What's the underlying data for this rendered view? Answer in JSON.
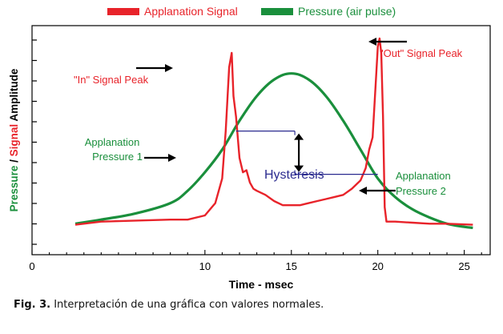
{
  "chart_data": {
    "type": "line",
    "legend_position": "top",
    "xlabel": "Time - msec",
    "ylabel_parts": [
      "Pressure",
      " / ",
      "Signal",
      " Amplitude"
    ],
    "xlim": [
      0,
      26.5
    ],
    "ylim": [
      0,
      1
    ],
    "x_ticks": [
      0,
      10,
      15,
      20,
      25
    ],
    "y_ticks_visible": false,
    "grid": false,
    "colors": {
      "signal": "#e8232a",
      "pressure": "#1a8f3c",
      "annotation": "#2b2b8f",
      "arrow": "#000000"
    },
    "series": [
      {
        "name": "Applanation Signal",
        "color": "#e8232a",
        "x": [
          2.5,
          4,
          6,
          8,
          9,
          10,
          10.6,
          11,
          11.2,
          11.4,
          11.55,
          11.65,
          11.8,
          12.0,
          12.2,
          12.4,
          12.6,
          12.8,
          13.0,
          13.5,
          14.0,
          14.5,
          15.0,
          15.5,
          16.0,
          16.5,
          17.0,
          17.5,
          18.0,
          18.5,
          19.0,
          19.3,
          19.5,
          19.7,
          19.9,
          20.0,
          20.1,
          20.2,
          20.3,
          20.4,
          20.5,
          21.0,
          22.0,
          23.0,
          24.0,
          25.5
        ],
        "y": [
          0.095,
          0.11,
          0.115,
          0.12,
          0.12,
          0.14,
          0.2,
          0.32,
          0.55,
          0.86,
          0.93,
          0.72,
          0.62,
          0.42,
          0.35,
          0.36,
          0.3,
          0.27,
          0.26,
          0.24,
          0.21,
          0.19,
          0.19,
          0.19,
          0.2,
          0.21,
          0.22,
          0.23,
          0.24,
          0.27,
          0.31,
          0.37,
          0.46,
          0.52,
          0.81,
          0.96,
          1.0,
          0.93,
          0.62,
          0.18,
          0.11,
          0.11,
          0.105,
          0.1,
          0.1,
          0.095
        ]
      },
      {
        "name": "Pressure (air pulse)",
        "color": "#1a8f3c",
        "x": [
          2.5,
          4,
          6,
          8,
          9,
          10,
          11,
          12,
          13,
          14,
          15,
          16,
          17,
          18,
          19,
          20,
          21,
          22,
          23,
          24,
          25,
          25.5
        ],
        "y": [
          0.1,
          0.12,
          0.15,
          0.2,
          0.26,
          0.35,
          0.46,
          0.6,
          0.72,
          0.8,
          0.83,
          0.8,
          0.72,
          0.6,
          0.46,
          0.32,
          0.23,
          0.17,
          0.13,
          0.1,
          0.085,
          0.08
        ]
      }
    ],
    "annotations": [
      {
        "text": "\"In\" Signal Peak",
        "color": "#e8232a",
        "x": 9.5,
        "y": 0.86
      },
      {
        "text": "\"Out\" Signal Peak",
        "color": "#e8232a",
        "x": 23.5,
        "y": 1.02
      },
      {
        "text_lines": [
          "Applanation",
          "Pressure 1"
        ],
        "color": "#1a8f3c",
        "x": 7.3,
        "y": 0.62
      },
      {
        "text_lines": [
          "Applanation",
          "Pressure 2"
        ],
        "color": "#1a8f3c",
        "x": 23.7,
        "y": 0.4
      },
      {
        "text": "Hysteresis",
        "color": "#2b2b8f",
        "x": 17.2,
        "y": 0.43
      }
    ],
    "hysteresis": {
      "x_start": 11.8,
      "x_end": 20.0,
      "y_pressure_1": 0.55,
      "y_pressure_2": 0.34,
      "x_bracket": 15.2
    }
  },
  "caption": {
    "label": "Fig. 3.",
    "text": " Interpretación de una gráfica con valores normales."
  }
}
